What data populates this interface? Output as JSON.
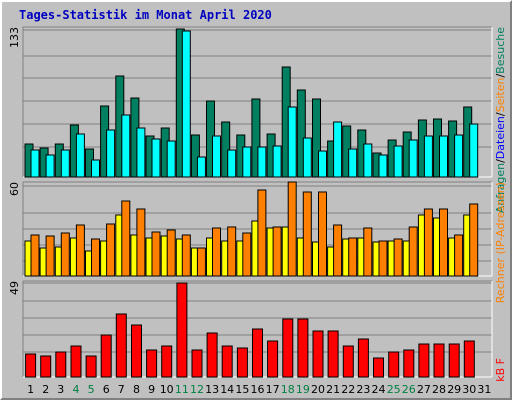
{
  "title": "Tages-Statistik im Monat April 2020",
  "colors": {
    "background": "#c0c0c0",
    "panel": "#c0c0c0",
    "hits": "#008060",
    "files": "#00ffff",
    "pages": "#ffff00",
    "visits": "#ff8000",
    "kbytes": "#ff0000",
    "legend_hits": "#008060",
    "legend_files": "#0000ff",
    "legend_pages": "#ff8000",
    "legend_sep": "#000000",
    "weekday_label": "#000000",
    "weekend_label": "#008040"
  },
  "chart_data": [
    {
      "type": "bar",
      "panel": "top",
      "ymax_label": "133",
      "ylim": [
        0,
        133
      ],
      "grid": true,
      "categories": [
        "1",
        "2",
        "3",
        "4",
        "5",
        "6",
        "7",
        "8",
        "9",
        "10",
        "11",
        "12",
        "13",
        "14",
        "15",
        "16",
        "17",
        "18",
        "19",
        "20",
        "21",
        "22",
        "23",
        "24",
        "25",
        "26",
        "27",
        "28",
        "29",
        "30",
        "31"
      ],
      "series": [
        {
          "name": "Anfragen",
          "color_key": "hits",
          "values": [
            30,
            26,
            30,
            47,
            25,
            64,
            91,
            71,
            37,
            44,
            133,
            38,
            68,
            49,
            38,
            70,
            39,
            99,
            78,
            70,
            32,
            46,
            42,
            22,
            33,
            40,
            51,
            52,
            50,
            63,
            null
          ]
        },
        {
          "name": "Dateien",
          "color_key": "files",
          "values": [
            24,
            20,
            24,
            39,
            15,
            42,
            56,
            44,
            34,
            32,
            131,
            18,
            37,
            24,
            27,
            27,
            28,
            63,
            35,
            23,
            49,
            25,
            30,
            20,
            28,
            33,
            37,
            37,
            38,
            48,
            null
          ]
        }
      ]
    },
    {
      "type": "bar",
      "panel": "middle",
      "ymax_label": "60",
      "ylim": [
        0,
        60
      ],
      "grid": true,
      "categories": [
        "1",
        "2",
        "3",
        "4",
        "5",
        "6",
        "7",
        "8",
        "9",
        "10",
        "11",
        "12",
        "13",
        "14",
        "15",
        "16",
        "17",
        "18",
        "19",
        "20",
        "21",
        "22",
        "23",
        "24",
        "25",
        "26",
        "27",
        "28",
        "29",
        "30",
        "31"
      ],
      "series": [
        {
          "name": "Rechner (IP-Adressen)",
          "color_key": "pages",
          "values": [
            23,
            18,
            19,
            25,
            16,
            23,
            40,
            27,
            25,
            26,
            24,
            18,
            25,
            23,
            23,
            36,
            31,
            32,
            25,
            22,
            19,
            24,
            25,
            22,
            23,
            23,
            40,
            38,
            25,
            40,
            null
          ]
        },
        {
          "name": "Rechner (IP-Adressen)",
          "color_key": "visits",
          "values": [
            27,
            26,
            28,
            33,
            24,
            34,
            49,
            44,
            29,
            30,
            27,
            18,
            31,
            32,
            28,
            56,
            32,
            61,
            55,
            55,
            33,
            25,
            31,
            23,
            24,
            32,
            44,
            44,
            27,
            47,
            null
          ]
        }
      ]
    },
    {
      "type": "bar",
      "panel": "bottom",
      "ymax_label": "49",
      "ylim": [
        0,
        49
      ],
      "grid": true,
      "categories": [
        "1",
        "2",
        "3",
        "4",
        "5",
        "6",
        "7",
        "8",
        "9",
        "10",
        "11",
        "12",
        "13",
        "14",
        "15",
        "16",
        "17",
        "18",
        "19",
        "20",
        "21",
        "22",
        "23",
        "24",
        "25",
        "26",
        "27",
        "28",
        "29",
        "30",
        "31"
      ],
      "series": [
        {
          "name": "kB F",
          "color_key": "kbytes",
          "values": [
            12,
            11,
            13,
            16,
            11,
            22,
            33,
            27,
            14,
            16,
            49,
            14,
            23,
            16,
            15,
            25,
            19,
            30,
            30,
            24,
            24,
            16,
            20,
            10,
            13,
            14,
            17,
            17,
            17,
            19,
            null
          ]
        }
      ]
    }
  ],
  "x_labels": [
    {
      "text": "1",
      "weekend": false
    },
    {
      "text": "2",
      "weekend": false
    },
    {
      "text": "3",
      "weekend": false
    },
    {
      "text": "4",
      "weekend": true
    },
    {
      "text": "5",
      "weekend": true
    },
    {
      "text": "6",
      "weekend": false
    },
    {
      "text": "7",
      "weekend": false
    },
    {
      "text": "8",
      "weekend": false
    },
    {
      "text": "9",
      "weekend": false
    },
    {
      "text": "10",
      "weekend": false
    },
    {
      "text": "11",
      "weekend": true
    },
    {
      "text": "12",
      "weekend": true
    },
    {
      "text": "13",
      "weekend": false
    },
    {
      "text": "14",
      "weekend": false
    },
    {
      "text": "15",
      "weekend": false
    },
    {
      "text": "16",
      "weekend": false
    },
    {
      "text": "17",
      "weekend": false
    },
    {
      "text": "18",
      "weekend": true
    },
    {
      "text": "19",
      "weekend": true
    },
    {
      "text": "20",
      "weekend": false
    },
    {
      "text": "21",
      "weekend": false
    },
    {
      "text": "22",
      "weekend": false
    },
    {
      "text": "23",
      "weekend": false
    },
    {
      "text": "24",
      "weekend": false
    },
    {
      "text": "25",
      "weekend": true
    },
    {
      "text": "26",
      "weekend": true
    },
    {
      "text": "27",
      "weekend": false
    },
    {
      "text": "28",
      "weekend": false
    },
    {
      "text": "29",
      "weekend": false
    },
    {
      "text": "30",
      "weekend": false
    },
    {
      "text": "31",
      "weekend": false
    }
  ],
  "legend_top": [
    {
      "text": "Anfragen",
      "color_key": "legend_hits"
    },
    {
      "text": "/",
      "color_key": "legend_sep"
    },
    {
      "text": "Dateien",
      "color_key": "legend_files"
    },
    {
      "text": "/",
      "color_key": "legend_sep"
    },
    {
      "text": "Seiten",
      "color_key": "legend_pages"
    },
    {
      "text": "/",
      "color_key": "legend_sep"
    },
    {
      "text": "Besuche",
      "color_key": "legend_hits"
    }
  ],
  "legend_middle": "Rechner (IP-Adressen)",
  "legend_bottom": "kB F"
}
